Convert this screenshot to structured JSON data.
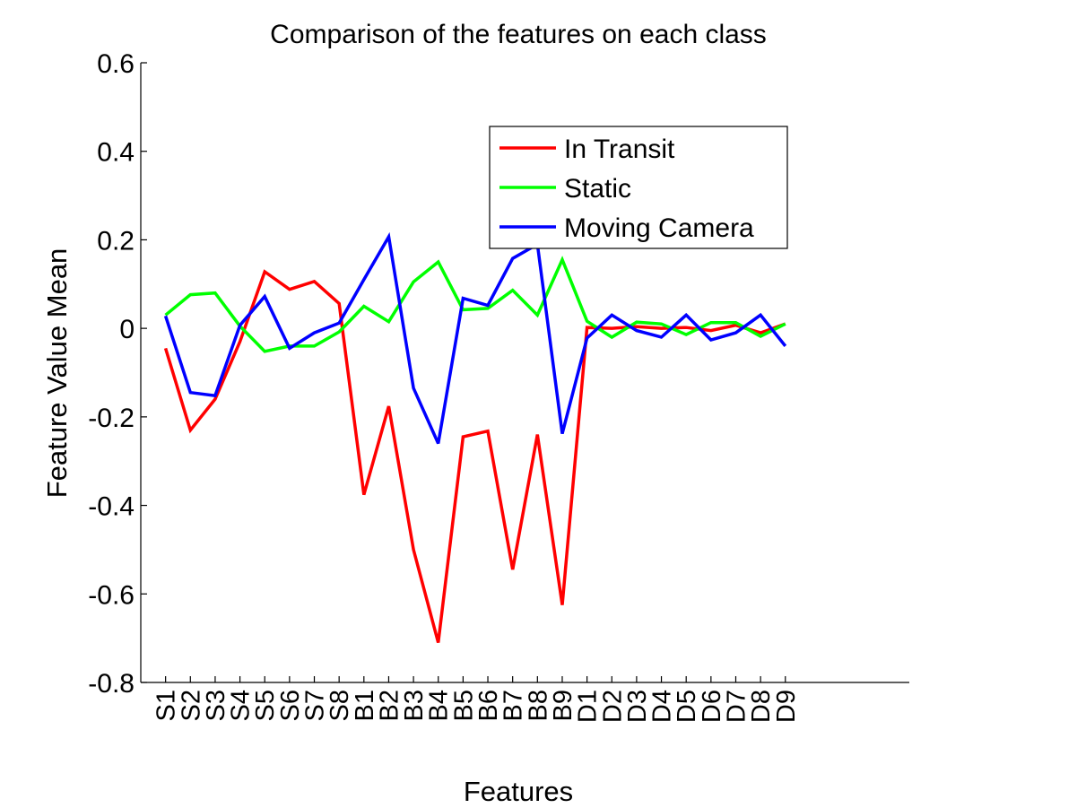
{
  "chart_data": {
    "type": "line",
    "title": "Comparison of the features on each class",
    "xlabel": "Features",
    "ylabel": "Feature Value Mean",
    "categories": [
      "S1",
      "S2",
      "S3",
      "S4",
      "S5",
      "S6",
      "S7",
      "S8",
      "B1",
      "B2",
      "B3",
      "B4",
      "B5",
      "B6",
      "B7",
      "B8",
      "B9",
      "D1",
      "D2",
      "D3",
      "D4",
      "D5",
      "D6",
      "D7",
      "D8",
      "D9"
    ],
    "ylim": [
      -0.8,
      0.6
    ],
    "yticks": [
      "0.6",
      "0.4",
      "0.2",
      "0",
      "-0.2",
      "-0.4",
      "-0.6",
      "-0.8"
    ],
    "ytick_values": [
      0.6,
      0.4,
      0.2,
      0,
      -0.2,
      -0.4,
      -0.6,
      -0.8
    ],
    "x_extent": 31,
    "grid": false,
    "legend_position": "top-right",
    "series": [
      {
        "name": "In Transit",
        "color": "#ff0000",
        "values": [
          -0.045,
          -0.23,
          -0.16,
          -0.03,
          0.128,
          0.088,
          0.106,
          0.056,
          -0.376,
          -0.176,
          -0.5,
          -0.71,
          -0.245,
          -0.232,
          -0.545,
          -0.24,
          -0.625,
          0.002,
          0.0,
          0.004,
          0.0,
          0.002,
          -0.005,
          0.007,
          -0.01,
          0.01
        ]
      },
      {
        "name": "Static",
        "color": "#00ff00",
        "values": [
          0.03,
          0.076,
          0.08,
          0.005,
          -0.052,
          -0.04,
          -0.04,
          -0.008,
          0.05,
          0.015,
          0.105,
          0.15,
          0.042,
          0.045,
          0.086,
          0.03,
          0.155,
          0.016,
          -0.02,
          0.014,
          0.01,
          -0.014,
          0.013,
          0.013,
          -0.018,
          0.01
        ]
      },
      {
        "name": "Moving Camera",
        "color": "#0000ff",
        "values": [
          0.028,
          -0.145,
          -0.152,
          0.007,
          0.072,
          -0.045,
          -0.01,
          0.012,
          0.11,
          0.207,
          -0.135,
          -0.26,
          0.068,
          0.052,
          0.158,
          0.19,
          -0.238,
          -0.022,
          0.03,
          -0.005,
          -0.02,
          0.03,
          -0.026,
          -0.01,
          0.03,
          -0.04
        ]
      }
    ]
  }
}
